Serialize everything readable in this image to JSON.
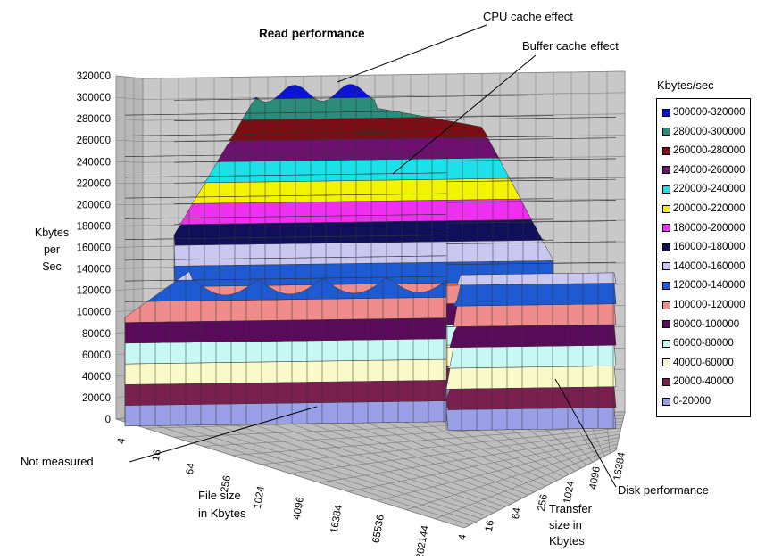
{
  "chart_data": {
    "type": "surface3d",
    "title": "Read performance",
    "zlabel": [
      "Kbytes",
      "per",
      "Sec"
    ],
    "xlabel": [
      "File size",
      "in Kbytes"
    ],
    "ylabel": [
      "Transfer",
      "size in",
      "Kbytes"
    ],
    "zlim": [
      0,
      320000
    ],
    "z_ticks": [
      "0",
      "20000",
      "40000",
      "60000",
      "80000",
      "100000",
      "120000",
      "140000",
      "160000",
      "180000",
      "200000",
      "220000",
      "240000",
      "260000",
      "280000",
      "300000",
      "320000"
    ],
    "x_ticks": [
      "4",
      "16",
      "64",
      "256",
      "1024",
      "4096",
      "16384",
      "65536",
      "262144"
    ],
    "y_ticks": [
      "4",
      "16",
      "64",
      "256",
      "1024",
      "4096",
      "16384"
    ],
    "grid": true,
    "legend": {
      "title": "Kbytes/sec",
      "placement": "right",
      "items": [
        {
          "label": "300000-320000",
          "color": "#0a14d2"
        },
        {
          "label": "280000-300000",
          "color": "#2a8c7a"
        },
        {
          "label": "260000-280000",
          "color": "#7a0e14"
        },
        {
          "label": "240000-260000",
          "color": "#6e1070"
        },
        {
          "label": "220000-240000",
          "color": "#1ae2e8"
        },
        {
          "label": "200000-220000",
          "color": "#f4f400"
        },
        {
          "label": "180000-200000",
          "color": "#f030f0"
        },
        {
          "label": "160000-180000",
          "color": "#10105a"
        },
        {
          "label": "140000-160000",
          "color": "#c8c8f0"
        },
        {
          "label": "120000-140000",
          "color": "#1e5ad2"
        },
        {
          "label": "100000-120000",
          "color": "#f08c8c"
        },
        {
          "label": "80000-100000",
          "color": "#5a0a5a"
        },
        {
          "label": "60000-80000",
          "color": "#c8f8f4"
        },
        {
          "label": "40000-60000",
          "color": "#fafac8"
        },
        {
          "label": "20000-40000",
          "color": "#7a2050"
        },
        {
          "label": "0-20000",
          "color": "#9aa0e8"
        }
      ]
    },
    "annotations": [
      "CPU cache effect",
      "Buffer cache effect",
      "Not measured",
      "Disk performance"
    ]
  }
}
